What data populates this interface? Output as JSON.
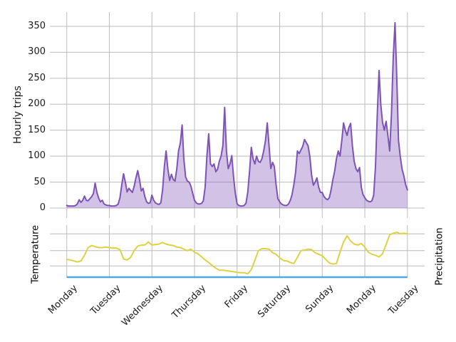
{
  "figure": {
    "background": "#ffffff",
    "grid_color": "#bcbcbc",
    "text_color": "#1a1a1a"
  },
  "top_chart": {
    "ylabel": "Hourly trips",
    "yticks": [
      0,
      50,
      100,
      150,
      200,
      250,
      300,
      350
    ],
    "line_color": "#7d53b8",
    "fill_opacity": 0.35
  },
  "bottom_chart": {
    "left_label": "Temperature",
    "right_label": "Precipitation",
    "temperature_color": "#ddd243",
    "precipitation_color": "#4fa8da"
  },
  "x_axis": {
    "tick_labels": [
      "Monday",
      "Tuesday",
      "Wednesday",
      "Thursday",
      "Friday",
      "Saturday",
      "Sunday",
      "Monday",
      "Tuesday"
    ]
  },
  "chart_data": [
    {
      "type": "area",
      "name": "Hourly trips",
      "panel": "top",
      "x_unit": "hours, Monday 00:00 through following Tuesday 00:00, hourly",
      "ylim": [
        -18,
        375
      ],
      "yticks": [
        0,
        50,
        100,
        150,
        200,
        250,
        300,
        350
      ],
      "color": "#7d53b8",
      "values": [
        5,
        4,
        4,
        4,
        4,
        5,
        8,
        16,
        11,
        15,
        23,
        15,
        14,
        18,
        22,
        28,
        48,
        30,
        19,
        12,
        15,
        8,
        6,
        5,
        5,
        4,
        4,
        4,
        5,
        8,
        20,
        45,
        66,
        50,
        31,
        38,
        34,
        30,
        42,
        58,
        72,
        55,
        33,
        38,
        22,
        12,
        9,
        10,
        25,
        15,
        10,
        8,
        7,
        10,
        35,
        80,
        110,
        75,
        53,
        65,
        55,
        52,
        75,
        110,
        125,
        160,
        95,
        60,
        52,
        50,
        42,
        28,
        15,
        10,
        8,
        8,
        9,
        14,
        40,
        100,
        143,
        85,
        80,
        85,
        70,
        75,
        90,
        100,
        120,
        194,
        110,
        76,
        85,
        101,
        60,
        28,
        8,
        5,
        4,
        4,
        5,
        9,
        30,
        70,
        117,
        95,
        85,
        100,
        90,
        88,
        95,
        110,
        130,
        164,
        120,
        76,
        88,
        80,
        45,
        18,
        12,
        8,
        6,
        5,
        5,
        8,
        15,
        26,
        45,
        69,
        110,
        105,
        112,
        119,
        132,
        126,
        120,
        100,
        64,
        44,
        50,
        58,
        40,
        30,
        30,
        22,
        18,
        16,
        20,
        35,
        55,
        71,
        95,
        110,
        100,
        130,
        164,
        150,
        140,
        155,
        163,
        120,
        90,
        76,
        70,
        78,
        40,
        26,
        20,
        15,
        13,
        12,
        14,
        25,
        80,
        180,
        265,
        200,
        165,
        150,
        167,
        140,
        110,
        180,
        290,
        357,
        250,
        130,
        99,
        75,
        62,
        45,
        35
      ]
    },
    {
      "type": "line",
      "name": "Temperature",
      "panel": "bottom",
      "x_unit": "same span, sampled every 2 hours",
      "y_unit": "percent of panel height (no tick labels shown)",
      "color": "#ddd243",
      "values": [
        36,
        35,
        33,
        31,
        33,
        44,
        59,
        63,
        61,
        59,
        59,
        60,
        59,
        58,
        58,
        55,
        37,
        35,
        40,
        53,
        62,
        64,
        64,
        70,
        64,
        65,
        66,
        69,
        66,
        64,
        63,
        60,
        59,
        56,
        53,
        56,
        50,
        47,
        41,
        35,
        30,
        24,
        19,
        15,
        15,
        14,
        13,
        12,
        11,
        10,
        10,
        8,
        16,
        34,
        53,
        57,
        57,
        56,
        49,
        46,
        39,
        34,
        33,
        30,
        28,
        40,
        53,
        54,
        56,
        55,
        49,
        46,
        43,
        36,
        29,
        27,
        28,
        50,
        70,
        82,
        72,
        66,
        64,
        67,
        60,
        50,
        46,
        44,
        41,
        47,
        65,
        84,
        87,
        89,
        86,
        87,
        86
      ]
    },
    {
      "type": "line",
      "name": "Precipitation",
      "panel": "bottom",
      "color": "#4fa8da",
      "constant_value": 0
    }
  ]
}
